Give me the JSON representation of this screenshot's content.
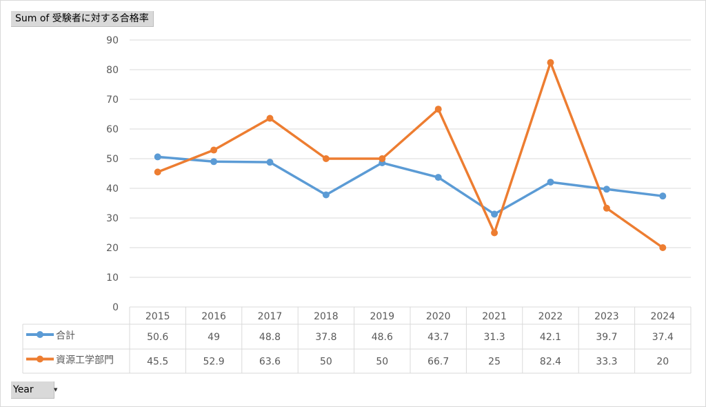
{
  "pivot": {
    "field_button": "Sum of 受験者に対する合格率",
    "axis_button": "Year",
    "axis_button_icon": "dropdown-arrow-icon"
  },
  "chart_data": {
    "type": "line",
    "categories": [
      "2015",
      "2016",
      "2017",
      "2018",
      "2019",
      "2020",
      "2021",
      "2022",
      "2023",
      "2024"
    ],
    "series": [
      {
        "name": "合計",
        "color": "#5b9bd5",
        "values": [
          50.6,
          49,
          48.8,
          37.8,
          48.6,
          43.7,
          31.3,
          42.1,
          39.7,
          37.4
        ]
      },
      {
        "name": "資源工学部門",
        "color": "#ed7d31",
        "values": [
          45.5,
          52.9,
          63.6,
          50,
          50,
          66.7,
          25,
          82.4,
          33.3,
          20
        ]
      }
    ],
    "ylim": [
      0,
      90
    ],
    "yticks": [
      0,
      10,
      20,
      30,
      40,
      50,
      60,
      70,
      80,
      90
    ],
    "grid": true,
    "data_table": true,
    "gridline_color": "#d9d9d9",
    "table_border_color": "#d9d9d9",
    "text_color": "#595959"
  }
}
